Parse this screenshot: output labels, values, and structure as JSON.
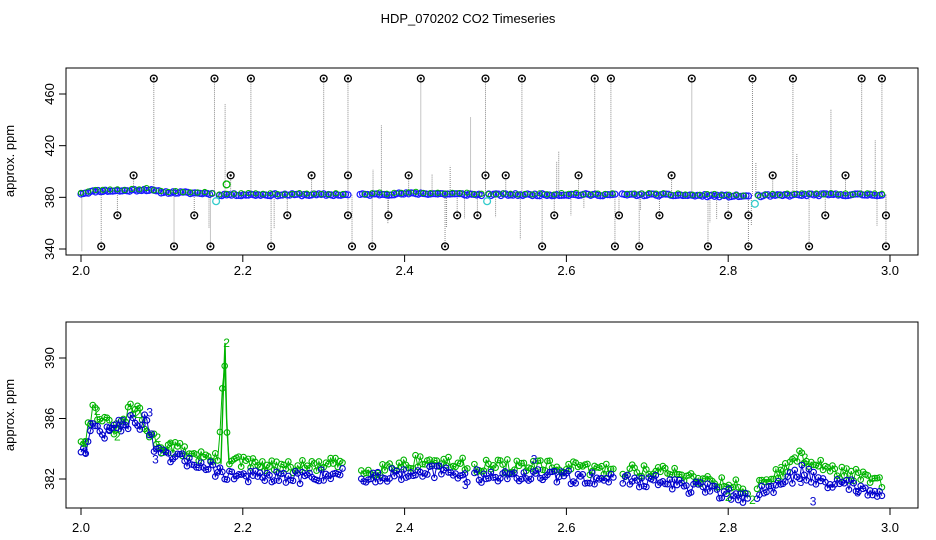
{
  "title": "HDP_070202  CO2 Timeseries",
  "colors": {
    "raw_flag": "#000000",
    "raw_line": "#8c8c8c",
    "series2": "#00b400",
    "series3": "#0000cc",
    "blue_points": "#1a1aff",
    "cyan_points": "#33cccc"
  },
  "chart_data": [
    {
      "type": "scatter",
      "ylabel": "approx. ppm",
      "xlabel": "",
      "xlim": [
        2.0,
        3.0
      ],
      "ylim": [
        340,
        475
      ],
      "xticks": [
        "2.0",
        "2.2",
        "2.4",
        "2.6",
        "2.8",
        "3.0"
      ],
      "yticks": [
        "340",
        "380",
        "420",
        "460"
      ],
      "grid": false,
      "outliers_high": [
        2.09,
        2.165,
        2.21,
        2.3,
        2.33,
        2.42,
        2.5,
        2.545,
        2.635,
        2.655,
        2.755,
        2.83,
        2.88,
        2.965,
        2.99
      ],
      "outliers_mid_high": [
        2.065,
        2.185,
        2.285,
        2.33,
        2.405,
        2.5,
        2.525,
        2.615,
        2.73,
        2.855,
        2.945
      ],
      "outliers_low": [
        2.045,
        2.14,
        2.255,
        2.33,
        2.38,
        2.465,
        2.49,
        2.585,
        2.665,
        2.715,
        2.8,
        2.825,
        2.92,
        2.995
      ],
      "outliers_bottom": [
        2.025,
        2.115,
        2.16,
        2.235,
        2.335,
        2.36,
        2.45,
        2.57,
        2.66,
        2.69,
        2.775,
        2.825,
        2.9,
        2.995
      ],
      "main_series": [
        {
          "x": 2.0,
          "y": 383
        },
        {
          "x": 2.02,
          "y": 385
        },
        {
          "x": 2.05,
          "y": 385
        },
        {
          "x": 2.08,
          "y": 386
        },
        {
          "x": 2.1,
          "y": 384
        },
        {
          "x": 2.16,
          "y": 383
        },
        {
          "x": 2.165,
          "y": 382
        },
        {
          "x": 2.3,
          "y": 382
        },
        {
          "x": 2.32,
          "y": 382
        },
        {
          "x": 2.34,
          "y": 382
        },
        {
          "x": 2.42,
          "y": 383
        },
        {
          "x": 2.5,
          "y": 382
        },
        {
          "x": 2.6,
          "y": 382
        },
        {
          "x": 2.66,
          "y": 382
        },
        {
          "x": 2.7,
          "y": 382
        },
        {
          "x": 2.8,
          "y": 381
        },
        {
          "x": 2.83,
          "y": 381
        },
        {
          "x": 2.9,
          "y": 382
        },
        {
          "x": 2.99,
          "y": 382
        }
      ],
      "cyan_points": [
        {
          "x": 2.167,
          "y": 377
        },
        {
          "x": 2.502,
          "y": 377
        },
        {
          "x": 2.833,
          "y": 375
        }
      ],
      "green_points": [
        {
          "x": 2.18,
          "y": 390
        }
      ]
    },
    {
      "type": "line",
      "ylabel": "approx. ppm",
      "xlabel": "",
      "xlim": [
        2.0,
        3.0
      ],
      "ylim": [
        380,
        392
      ],
      "xticks": [
        "2.0",
        "2.2",
        "2.4",
        "2.6",
        "2.8",
        "3.0"
      ],
      "yticks": [
        "382",
        "386",
        "390"
      ],
      "grid": false,
      "series": [
        {
          "name": "2",
          "points": [
            {
              "x": 2.005,
              "y": 384.5
            },
            {
              "x": 2.015,
              "y": 386.5
            },
            {
              "x": 2.03,
              "y": 385.5
            },
            {
              "x": 2.045,
              "y": 385
            },
            {
              "x": 2.06,
              "y": 386.3
            },
            {
              "x": 2.07,
              "y": 386.5
            },
            {
              "x": 2.08,
              "y": 385
            },
            {
              "x": 2.09,
              "y": 384.5
            },
            {
              "x": 2.1,
              "y": 384
            },
            {
              "x": 2.12,
              "y": 383.8
            },
            {
              "x": 2.15,
              "y": 383.3
            },
            {
              "x": 2.17,
              "y": 383
            },
            {
              "x": 2.177,
              "y": 390.5
            },
            {
              "x": 2.182,
              "y": 383
            },
            {
              "x": 2.25,
              "y": 382.5
            },
            {
              "x": 2.32,
              "y": 382.8
            },
            {
              "x": 2.35,
              "y": 382.3
            },
            {
              "x": 2.42,
              "y": 383
            },
            {
              "x": 2.48,
              "y": 382.7
            },
            {
              "x": 2.56,
              "y": 382.6
            },
            {
              "x": 2.66,
              "y": 382.4
            },
            {
              "x": 2.72,
              "y": 382.3
            },
            {
              "x": 2.8,
              "y": 381.5
            },
            {
              "x": 2.83,
              "y": 381
            },
            {
              "x": 2.87,
              "y": 382.5
            },
            {
              "x": 2.89,
              "y": 383.3
            },
            {
              "x": 2.92,
              "y": 382.5
            },
            {
              "x": 2.96,
              "y": 382
            },
            {
              "x": 2.99,
              "y": 381.5
            }
          ]
        },
        {
          "name": "3",
          "points": [
            {
              "x": 2.005,
              "y": 384
            },
            {
              "x": 2.015,
              "y": 385.5
            },
            {
              "x": 2.03,
              "y": 385
            },
            {
              "x": 2.045,
              "y": 385.5
            },
            {
              "x": 2.06,
              "y": 385.8
            },
            {
              "x": 2.07,
              "y": 385.5
            },
            {
              "x": 2.08,
              "y": 386.2
            },
            {
              "x": 2.09,
              "y": 384
            },
            {
              "x": 2.1,
              "y": 383.5
            },
            {
              "x": 2.12,
              "y": 383.3
            },
            {
              "x": 2.15,
              "y": 383
            },
            {
              "x": 2.17,
              "y": 382.5
            },
            {
              "x": 2.18,
              "y": 382.3
            },
            {
              "x": 2.25,
              "y": 382
            },
            {
              "x": 2.32,
              "y": 382.4
            },
            {
              "x": 2.35,
              "y": 382
            },
            {
              "x": 2.42,
              "y": 382.6
            },
            {
              "x": 2.48,
              "y": 382.2
            },
            {
              "x": 2.56,
              "y": 382.2
            },
            {
              "x": 2.66,
              "y": 382
            },
            {
              "x": 2.72,
              "y": 381.8
            },
            {
              "x": 2.8,
              "y": 381
            },
            {
              "x": 2.83,
              "y": 380.8
            },
            {
              "x": 2.87,
              "y": 381.8
            },
            {
              "x": 2.89,
              "y": 382.5
            },
            {
              "x": 2.92,
              "y": 381.8
            },
            {
              "x": 2.96,
              "y": 381.5
            },
            {
              "x": 2.99,
              "y": 381.2
            }
          ]
        }
      ],
      "labels_2": [
        {
          "x": 2.18,
          "y": 391
        },
        {
          "x": 2.02,
          "y": 386.5
        },
        {
          "x": 2.07,
          "y": 386.3
        },
        {
          "x": 2.1,
          "y": 383.8
        },
        {
          "x": 2.895,
          "y": 383.4
        },
        {
          "x": 2.11,
          "y": 384.2
        },
        {
          "x": 2.045,
          "y": 384.8
        },
        {
          "x": 2.005,
          "y": 384.4
        },
        {
          "x": 2.095,
          "y": 384.7
        },
        {
          "x": 2.8,
          "y": 380.8
        },
        {
          "x": 2.83,
          "y": 380.6
        },
        {
          "x": 2.865,
          "y": 382.7
        }
      ],
      "labels_3": [
        {
          "x": 2.005,
          "y": 383.8
        },
        {
          "x": 2.012,
          "y": 385.6
        },
        {
          "x": 2.035,
          "y": 385.3
        },
        {
          "x": 2.052,
          "y": 385.8
        },
        {
          "x": 2.085,
          "y": 386.4
        },
        {
          "x": 2.092,
          "y": 383.3
        },
        {
          "x": 2.17,
          "y": 382.6
        },
        {
          "x": 2.56,
          "y": 383.3
        },
        {
          "x": 2.475,
          "y": 381.6
        },
        {
          "x": 2.905,
          "y": 380.5
        },
        {
          "x": 2.96,
          "y": 381.1
        },
        {
          "x": 2.89,
          "y": 381.8
        }
      ]
    }
  ]
}
